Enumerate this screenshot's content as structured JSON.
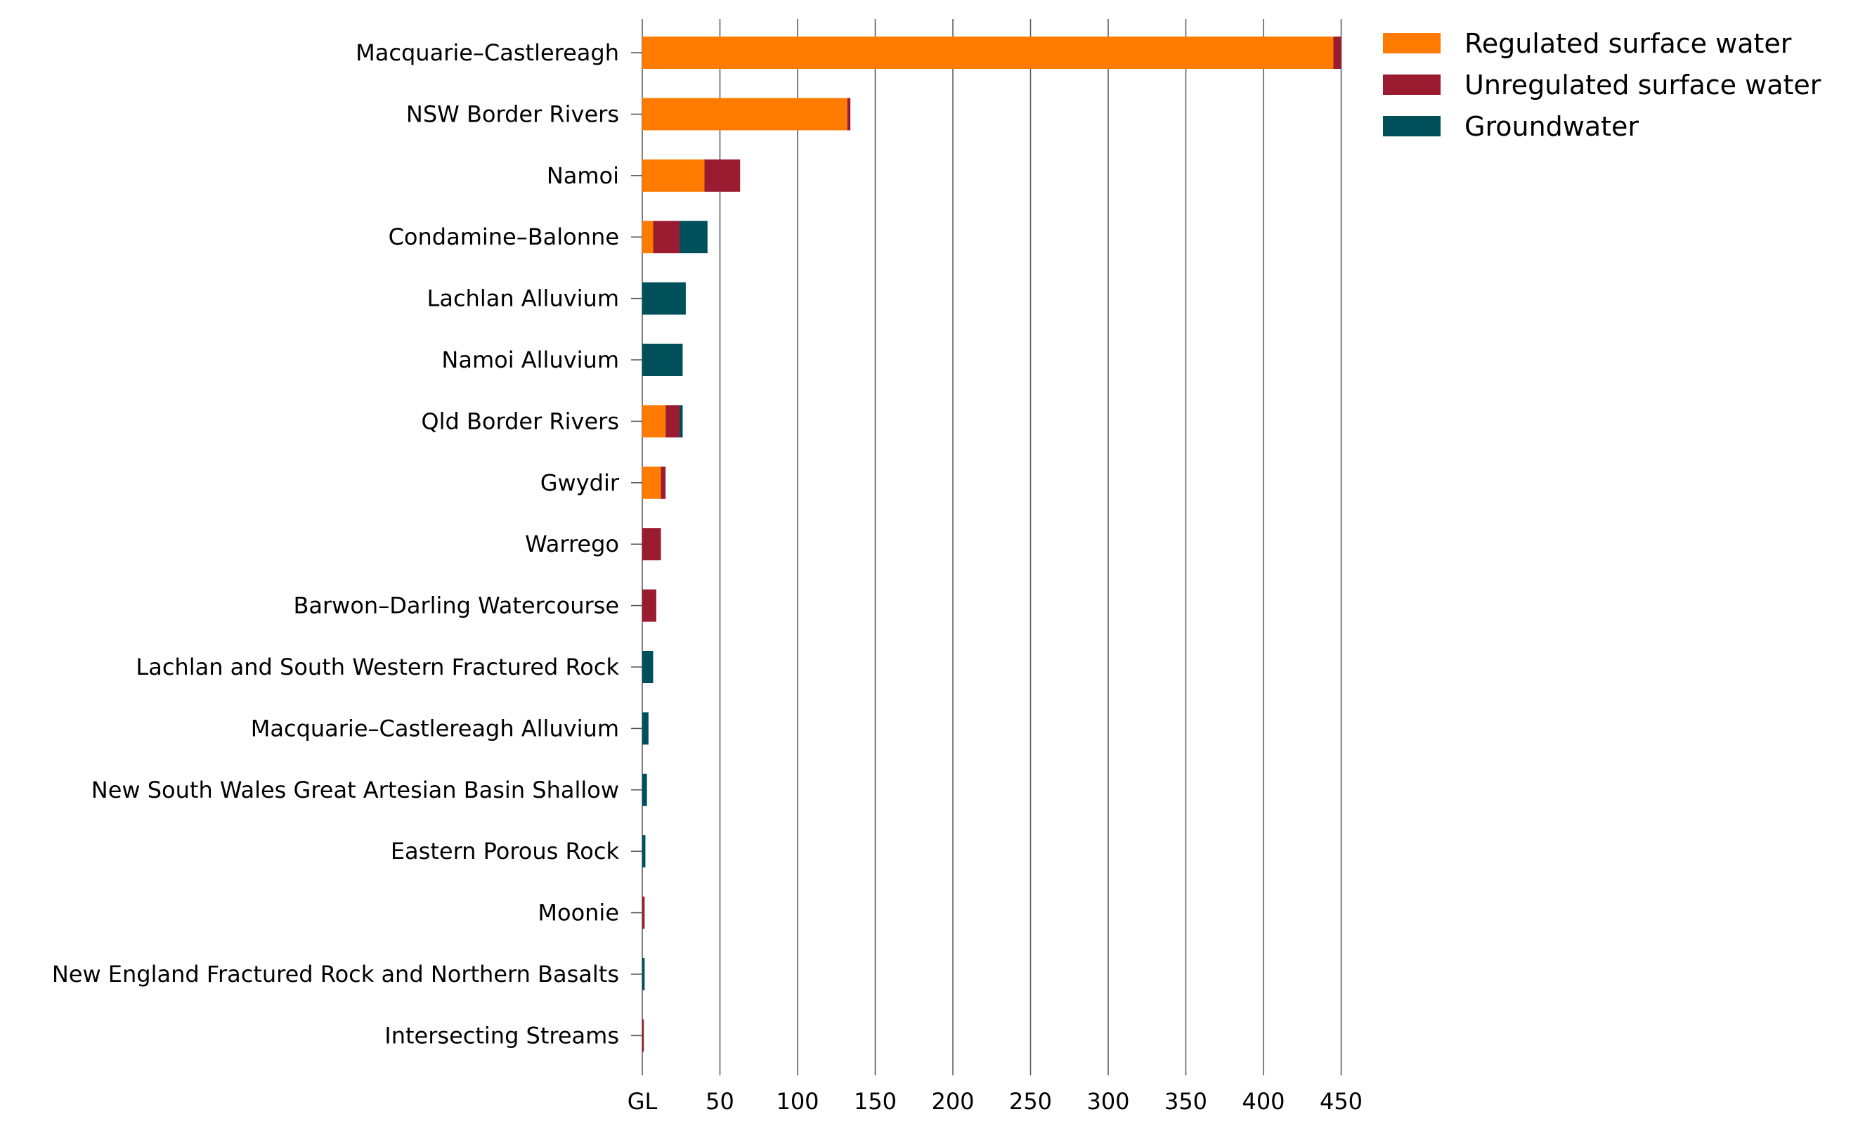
{
  "chart_data": {
    "type": "bar",
    "orientation": "horizontal",
    "stacked": true,
    "categories": [
      "Macquarie–Castlereagh",
      "NSW Border Rivers",
      "Namoi",
      "Condamine–Balonne",
      "Lachlan Alluvium",
      "Namoi Alluvium",
      "Qld Border Rivers",
      "Gwydir",
      "Warrego",
      "Barwon–Darling Watercourse",
      "Lachlan and South Western Fractured Rock",
      "Macquarie–Castlereagh Alluvium",
      "New South Wales Great Artesian Basin Shallow",
      "Eastern Porous Rock",
      "Moonie",
      "New England Fractured Rock and Northern Basalts",
      "Intersecting Streams"
    ],
    "series": [
      {
        "name": "Regulated surface water",
        "color": "#ff7b00",
        "values": [
          445,
          132,
          40,
          7,
          0,
          0,
          15,
          12,
          0,
          0,
          0,
          0,
          0,
          0,
          0,
          0,
          0
        ]
      },
      {
        "name": "Unregulated surface water",
        "color": "#9b1b30",
        "values": [
          5,
          2,
          23,
          17,
          0,
          0,
          9,
          3,
          12,
          9,
          0,
          0,
          0,
          0,
          1.5,
          0,
          1
        ]
      },
      {
        "name": "Groundwater",
        "color": "#00505c",
        "values": [
          0,
          0,
          0,
          18,
          28,
          26,
          2,
          0,
          0,
          0,
          7,
          4,
          3,
          2,
          0,
          1.5,
          0
        ]
      }
    ],
    "x_ticks": [
      "GL",
      "50",
      "100",
      "150",
      "200",
      "250",
      "300",
      "350",
      "400",
      "450"
    ],
    "x_tick_values": [
      0,
      50,
      100,
      150,
      200,
      250,
      300,
      350,
      400,
      450
    ],
    "xlim": [
      0,
      460
    ],
    "xlabel": "",
    "ylabel": "",
    "title": "",
    "grid": "vertical",
    "legend": "top-right"
  }
}
